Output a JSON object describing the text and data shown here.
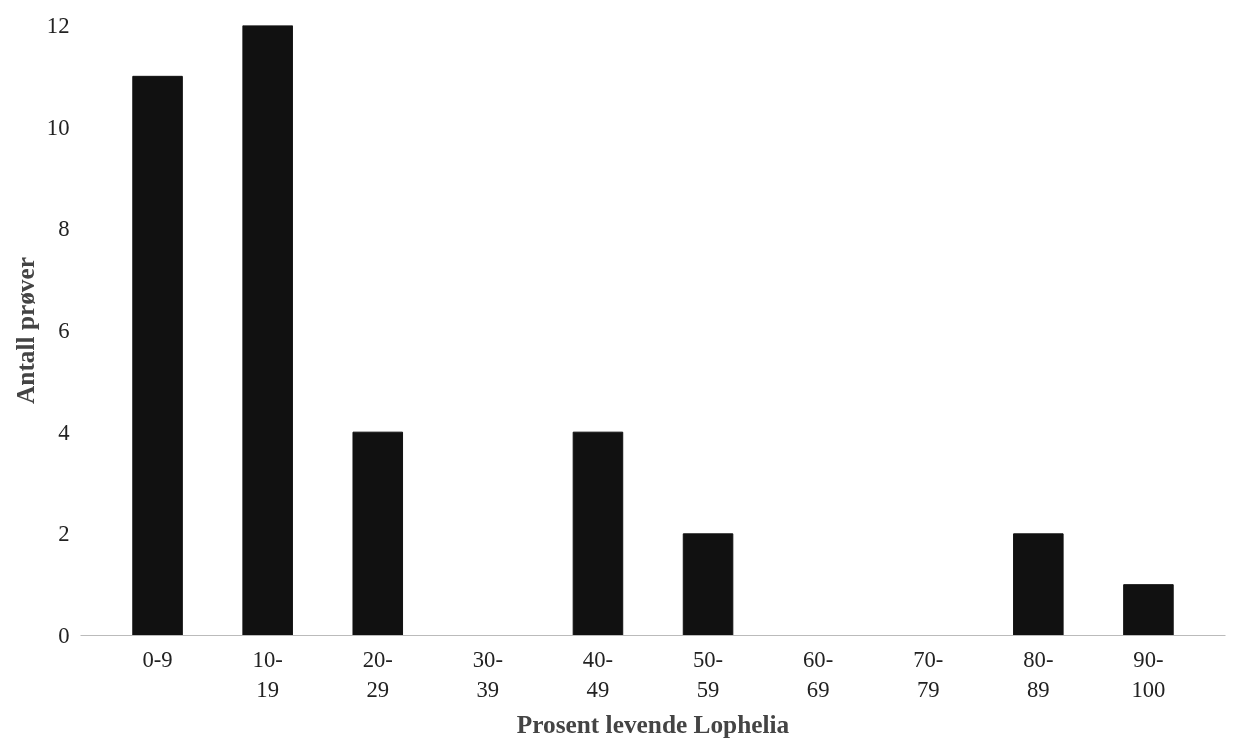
{
  "chart_data": {
    "type": "bar",
    "xlabel": "Prosent levende Lophelia",
    "ylabel": "Antall prøver",
    "categories": [
      "0-9",
      "10-19",
      "20-29",
      "30-39",
      "40-49",
      "50-59",
      "60-69",
      "70-79",
      "80-89",
      "90-100"
    ],
    "values": [
      11,
      12,
      4,
      0,
      4,
      2,
      0,
      0,
      2,
      1
    ],
    "color": "#111111",
    "ylim": [
      0,
      12
    ],
    "yticks": [
      0,
      2,
      4,
      6,
      8,
      10,
      12
    ],
    "grid": false
  }
}
